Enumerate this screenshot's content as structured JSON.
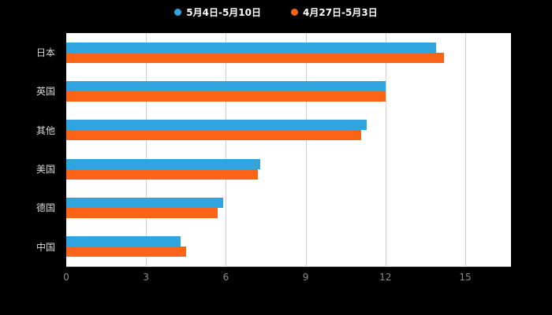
{
  "legend": {
    "items": [
      {
        "label": "5月4日-5月10日",
        "color": "#2FA4DE"
      },
      {
        "label": "4月27日-5月3日",
        "color": "#FB6316"
      }
    ]
  },
  "chart_data": {
    "type": "bar",
    "orientation": "horizontal",
    "title": "",
    "xlabel": "",
    "ylabel": "",
    "categories": [
      "日本",
      "英国",
      "其他",
      "美国",
      "德国",
      "中国"
    ],
    "series": [
      {
        "name": "5月4日-5月10日",
        "color": "#2FA4DE",
        "values": [
          13.9,
          12.0,
          11.3,
          7.3,
          5.9,
          4.3
        ]
      },
      {
        "name": "4月27日-5月3日",
        "color": "#FB6316",
        "values": [
          14.2,
          12.0,
          11.1,
          7.2,
          5.7,
          4.5
        ]
      }
    ],
    "xlim": [
      0,
      15
    ],
    "xticks": [
      0,
      3,
      6,
      9,
      12,
      15
    ],
    "grid": true,
    "legend_position": "top-center",
    "colors": {
      "page_background": "#000000",
      "plot_background": "#ffffff",
      "gridline": "#d0d0d0",
      "axis_line": "#b3b3b3",
      "category_label": "#d9d9d9",
      "tick_label": "#8c8c8c",
      "legend_text": "#ffffff"
    }
  }
}
